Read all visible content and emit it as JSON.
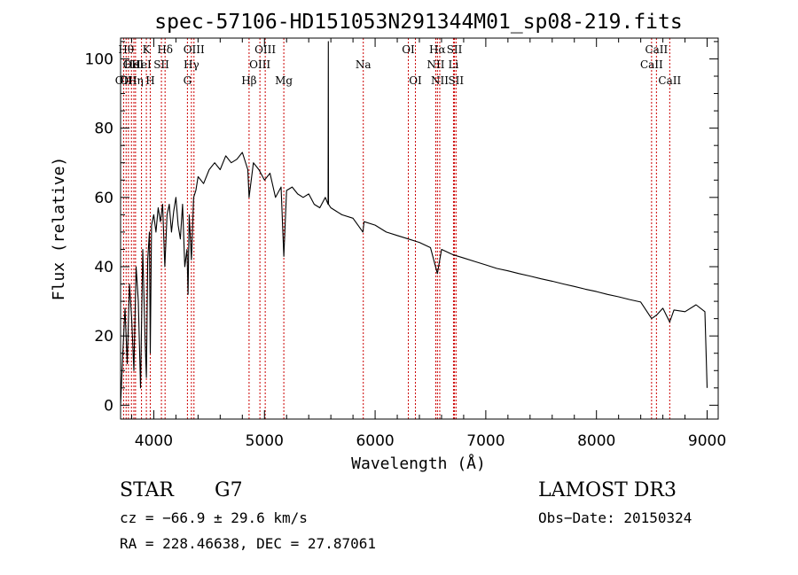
{
  "chart_data": {
    "type": "line",
    "title": "spec-57106-HD151053N291344M01_sp08-219.fits",
    "xlabel": "Wavelength (Å)",
    "ylabel": "Flux (relative)",
    "xlim": [
      3700,
      9100
    ],
    "ylim": [
      -4,
      106
    ],
    "x_ticks": [
      4000,
      5000,
      6000,
      7000,
      8000,
      9000
    ],
    "x_tick_labels": [
      "4000",
      "5000",
      "6000",
      "7000",
      "8000",
      "9000"
    ],
    "y_ticks": [
      0,
      20,
      40,
      60,
      80,
      100
    ],
    "y_tick_labels": [
      "0",
      "20",
      "40",
      "60",
      "80",
      "100"
    ],
    "series": [
      {
        "name": "flux",
        "x": [
          3700,
          3720,
          3740,
          3760,
          3780,
          3800,
          3820,
          3840,
          3860,
          3880,
          3900,
          3920,
          3933,
          3945,
          3960,
          3968,
          3980,
          4000,
          4020,
          4040,
          4060,
          4080,
          4100,
          4120,
          4140,
          4160,
          4180,
          4200,
          4220,
          4240,
          4260,
          4280,
          4300,
          4310,
          4320,
          4340,
          4360,
          4380,
          4400,
          4450,
          4500,
          4550,
          4600,
          4650,
          4700,
          4750,
          4800,
          4850,
          4861,
          4900,
          4950,
          5000,
          5050,
          5100,
          5150,
          5175,
          5200,
          5250,
          5300,
          5350,
          5400,
          5450,
          5500,
          5550,
          5575,
          5577,
          5579,
          5600,
          5650,
          5700,
          5800,
          5890,
          5900,
          6000,
          6100,
          6200,
          6300,
          6400,
          6500,
          6563,
          6600,
          6700,
          6800,
          6900,
          7000,
          7100,
          7200,
          7300,
          7400,
          7500,
          7600,
          7700,
          7800,
          7900,
          8000,
          8100,
          8200,
          8300,
          8400,
          8498,
          8542,
          8600,
          8662,
          8700,
          8800,
          8900,
          8980,
          9000
        ],
        "values": [
          0,
          15,
          28,
          12,
          35,
          25,
          10,
          40,
          30,
          5,
          45,
          20,
          8,
          42,
          50,
          15,
          52,
          55,
          50,
          57,
          53,
          58,
          40,
          55,
          58,
          50,
          56,
          60,
          52,
          48,
          58,
          40,
          45,
          32,
          55,
          42,
          60,
          62,
          66,
          64,
          68,
          70,
          68,
          72,
          70,
          71,
          73,
          68,
          60,
          70,
          68,
          65,
          67,
          60,
          63,
          43,
          62,
          63,
          61,
          60,
          61,
          58,
          57,
          60,
          58,
          105,
          58,
          57,
          56,
          55,
          54,
          50,
          53,
          52,
          50,
          49,
          48,
          47,
          45.5,
          38,
          45,
          43.5,
          42.5,
          41.5,
          40.5,
          39.5,
          38.8,
          38,
          37.3,
          36.5,
          35.8,
          35,
          34.3,
          33.5,
          32.8,
          32,
          31.3,
          30.5,
          29.8,
          25,
          26,
          28,
          24,
          27.5,
          27,
          29,
          27,
          5
        ]
      }
    ],
    "reference_lines": [
      {
        "x": 3727,
        "row": 2,
        "label": "OII"
      },
      {
        "x": 3750,
        "row": 0,
        "label": "Hθ"
      },
      {
        "x": 3771,
        "row": 2,
        "label": "OII"
      },
      {
        "x": 3798,
        "row": 1,
        "label": "OII"
      },
      {
        "x": 3820,
        "row": 1,
        "label": "HeI"
      },
      {
        "x": 3835,
        "row": 2,
        "label": "Hη"
      },
      {
        "x": 3889,
        "row": 1,
        "label": "HeI"
      },
      {
        "x": 3933,
        "row": 0,
        "label": "K"
      },
      {
        "x": 3968,
        "row": 2,
        "label": "H"
      },
      {
        "x": 4069,
        "row": 1,
        "label": "SII"
      },
      {
        "x": 4102,
        "row": 0,
        "label": "Hδ"
      },
      {
        "x": 4304,
        "row": 2,
        "label": "G"
      },
      {
        "x": 4340,
        "row": 1,
        "label": "Hγ"
      },
      {
        "x": 4363,
        "row": 0,
        "label": "OIII"
      },
      {
        "x": 4861,
        "row": 2,
        "label": "Hβ"
      },
      {
        "x": 4959,
        "row": 1,
        "label": "OIII"
      },
      {
        "x": 5007,
        "row": 0,
        "label": "OIII"
      },
      {
        "x": 5175,
        "row": 2,
        "label": "Mg"
      },
      {
        "x": 5893,
        "row": 1,
        "label": "Na"
      },
      {
        "x": 6300,
        "row": 0,
        "label": "OI"
      },
      {
        "x": 6364,
        "row": 2,
        "label": "OI"
      },
      {
        "x": 6548,
        "row": 1,
        "label": "NII"
      },
      {
        "x": 6563,
        "row": 0,
        "label": "Hα"
      },
      {
        "x": 6584,
        "row": 2,
        "label": "NII"
      },
      {
        "x": 6708,
        "row": 1,
        "label": "Li"
      },
      {
        "x": 6717,
        "row": 0,
        "label": "SII"
      },
      {
        "x": 6731,
        "row": 2,
        "label": "SII"
      },
      {
        "x": 8498,
        "row": 1,
        "label": "CaII"
      },
      {
        "x": 8542,
        "row": 0,
        "label": "CaII"
      },
      {
        "x": 8662,
        "row": 2,
        "label": "CaII"
      }
    ]
  },
  "info": {
    "object_class": "STAR",
    "subclass": "G7",
    "survey": "LAMOST DR3",
    "redshift_text": "cz = −66.9 ± 29.6 km/s",
    "obs_date": "Obs−Date: 20150324",
    "coords": "RA = 228.46638, DEC =  27.87061"
  },
  "colors": {
    "spectrum": "#000000",
    "reference_line": "#cc0000",
    "axis": "#000000"
  }
}
